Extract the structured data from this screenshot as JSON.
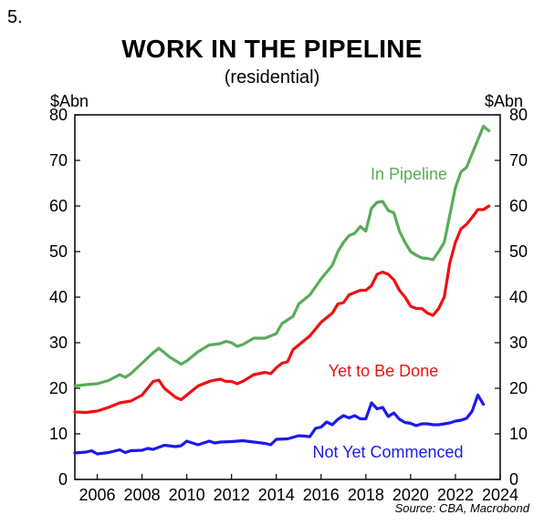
{
  "figure_number": "5.",
  "source": "Source: CBA, Macrobond",
  "chart_data": {
    "type": "line",
    "title": "WORK IN THE PIPELINE",
    "subtitle": "(residential)",
    "ylabel_left": "$Abn",
    "ylabel_right": "$Abn",
    "xlim": [
      2005.0,
      2024.0
    ],
    "ylim": [
      0,
      80
    ],
    "x_ticks": [
      2006,
      2008,
      2010,
      2012,
      2014,
      2016,
      2018,
      2020,
      2022,
      2024
    ],
    "y_ticks": [
      0,
      10,
      20,
      30,
      40,
      50,
      60,
      70,
      80
    ],
    "grid": false,
    "series": [
      {
        "name": "In Pipeline",
        "color": "#5aab5a",
        "points": [
          [
            2005.0,
            20.5
          ],
          [
            2005.5,
            20.8
          ],
          [
            2006.0,
            21.0
          ],
          [
            2006.5,
            21.7
          ],
          [
            2007.0,
            23.0
          ],
          [
            2007.25,
            22.4
          ],
          [
            2007.5,
            23.2
          ],
          [
            2008.0,
            25.5
          ],
          [
            2008.5,
            27.8
          ],
          [
            2008.75,
            28.8
          ],
          [
            2009.25,
            26.8
          ],
          [
            2009.75,
            25.3
          ],
          [
            2010.0,
            26.0
          ],
          [
            2010.5,
            28.0
          ],
          [
            2011.0,
            29.5
          ],
          [
            2011.5,
            29.8
          ],
          [
            2011.75,
            30.3
          ],
          [
            2012.0,
            30.0
          ],
          [
            2012.25,
            29.2
          ],
          [
            2012.5,
            29.6
          ],
          [
            2013.0,
            31.0
          ],
          [
            2013.5,
            31.0
          ],
          [
            2014.0,
            32.0
          ],
          [
            2014.25,
            34.2
          ],
          [
            2014.75,
            35.8
          ],
          [
            2015.0,
            38.5
          ],
          [
            2015.5,
            40.5
          ],
          [
            2016.0,
            44.0
          ],
          [
            2016.5,
            47.0
          ],
          [
            2016.75,
            50.0
          ],
          [
            2017.0,
            52.0
          ],
          [
            2017.25,
            53.5
          ],
          [
            2017.5,
            54.0
          ],
          [
            2017.75,
            55.5
          ],
          [
            2018.0,
            54.5
          ],
          [
            2018.25,
            59.5
          ],
          [
            2018.5,
            60.8
          ],
          [
            2018.75,
            61.0
          ],
          [
            2019.0,
            59.0
          ],
          [
            2019.25,
            58.5
          ],
          [
            2019.5,
            54.5
          ],
          [
            2019.75,
            52.0
          ],
          [
            2020.0,
            50.0
          ],
          [
            2020.25,
            49.2
          ],
          [
            2020.5,
            48.6
          ],
          [
            2020.75,
            48.5
          ],
          [
            2021.0,
            48.2
          ],
          [
            2021.25,
            50.0
          ],
          [
            2021.5,
            52.0
          ],
          [
            2021.75,
            58.0
          ],
          [
            2022.0,
            64.0
          ],
          [
            2022.25,
            67.5
          ],
          [
            2022.5,
            68.5
          ],
          [
            2022.75,
            71.5
          ],
          [
            2023.0,
            74.5
          ],
          [
            2023.25,
            77.5
          ],
          [
            2023.5,
            76.5
          ]
        ]
      },
      {
        "name": "Yet to Be Done",
        "color": "#ee1111",
        "points": [
          [
            2005.0,
            14.8
          ],
          [
            2005.5,
            14.7
          ],
          [
            2006.0,
            15.0
          ],
          [
            2006.5,
            15.8
          ],
          [
            2007.0,
            16.8
          ],
          [
            2007.5,
            17.2
          ],
          [
            2008.0,
            18.5
          ],
          [
            2008.5,
            21.5
          ],
          [
            2008.75,
            21.8
          ],
          [
            2009.0,
            20.0
          ],
          [
            2009.5,
            18.0
          ],
          [
            2009.75,
            17.5
          ],
          [
            2010.0,
            18.5
          ],
          [
            2010.5,
            20.5
          ],
          [
            2011.0,
            21.5
          ],
          [
            2011.25,
            21.8
          ],
          [
            2011.5,
            22.0
          ],
          [
            2011.75,
            21.5
          ],
          [
            2012.0,
            21.5
          ],
          [
            2012.25,
            21.0
          ],
          [
            2012.5,
            21.5
          ],
          [
            2013.0,
            23.0
          ],
          [
            2013.5,
            23.5
          ],
          [
            2013.75,
            23.2
          ],
          [
            2014.0,
            24.5
          ],
          [
            2014.25,
            25.5
          ],
          [
            2014.5,
            25.8
          ],
          [
            2014.75,
            28.5
          ],
          [
            2015.0,
            29.5
          ],
          [
            2015.5,
            31.5
          ],
          [
            2016.0,
            34.5
          ],
          [
            2016.5,
            36.5
          ],
          [
            2016.75,
            38.5
          ],
          [
            2017.0,
            38.8
          ],
          [
            2017.25,
            40.5
          ],
          [
            2017.5,
            41.0
          ],
          [
            2017.75,
            41.5
          ],
          [
            2018.0,
            41.5
          ],
          [
            2018.25,
            42.5
          ],
          [
            2018.5,
            45.0
          ],
          [
            2018.75,
            45.5
          ],
          [
            2019.0,
            45.0
          ],
          [
            2019.25,
            43.8
          ],
          [
            2019.5,
            41.5
          ],
          [
            2019.75,
            40.0
          ],
          [
            2020.0,
            38.0
          ],
          [
            2020.25,
            37.5
          ],
          [
            2020.5,
            37.5
          ],
          [
            2020.75,
            36.5
          ],
          [
            2021.0,
            36.0
          ],
          [
            2021.25,
            37.5
          ],
          [
            2021.5,
            40.0
          ],
          [
            2021.75,
            47.5
          ],
          [
            2022.0,
            52.0
          ],
          [
            2022.25,
            55.0
          ],
          [
            2022.5,
            56.0
          ],
          [
            2022.75,
            57.5
          ],
          [
            2023.0,
            59.2
          ],
          [
            2023.25,
            59.2
          ],
          [
            2023.5,
            60.0
          ]
        ]
      },
      {
        "name": "Not Yet Commenced",
        "color": "#1a1aee",
        "points": [
          [
            2005.0,
            5.8
          ],
          [
            2005.5,
            6.0
          ],
          [
            2005.75,
            6.3
          ],
          [
            2006.0,
            5.6
          ],
          [
            2006.5,
            5.9
          ],
          [
            2007.0,
            6.5
          ],
          [
            2007.25,
            5.9
          ],
          [
            2007.5,
            6.3
          ],
          [
            2008.0,
            6.4
          ],
          [
            2008.25,
            6.8
          ],
          [
            2008.5,
            6.6
          ],
          [
            2009.0,
            7.5
          ],
          [
            2009.5,
            7.2
          ],
          [
            2009.75,
            7.4
          ],
          [
            2010.0,
            8.4
          ],
          [
            2010.5,
            7.6
          ],
          [
            2011.0,
            8.4
          ],
          [
            2011.25,
            8.0
          ],
          [
            2011.5,
            8.2
          ],
          [
            2012.0,
            8.3
          ],
          [
            2012.5,
            8.5
          ],
          [
            2013.0,
            8.2
          ],
          [
            2013.5,
            7.9
          ],
          [
            2013.75,
            7.6
          ],
          [
            2014.0,
            8.8
          ],
          [
            2014.5,
            8.9
          ],
          [
            2015.0,
            9.6
          ],
          [
            2015.5,
            9.4
          ],
          [
            2015.75,
            11.2
          ],
          [
            2016.0,
            11.5
          ],
          [
            2016.25,
            12.6
          ],
          [
            2016.5,
            12.0
          ],
          [
            2016.75,
            13.2
          ],
          [
            2017.0,
            14.0
          ],
          [
            2017.25,
            13.5
          ],
          [
            2017.5,
            14.0
          ],
          [
            2017.75,
            13.3
          ],
          [
            2018.0,
            13.3
          ],
          [
            2018.25,
            16.8
          ],
          [
            2018.5,
            15.5
          ],
          [
            2018.75,
            15.8
          ],
          [
            2019.0,
            13.8
          ],
          [
            2019.25,
            14.6
          ],
          [
            2019.5,
            13.2
          ],
          [
            2019.75,
            12.5
          ],
          [
            2020.0,
            12.3
          ],
          [
            2020.25,
            11.8
          ],
          [
            2020.5,
            12.2
          ],
          [
            2020.75,
            12.2
          ],
          [
            2021.0,
            12.0
          ],
          [
            2021.25,
            12.0
          ],
          [
            2021.5,
            12.2
          ],
          [
            2021.75,
            12.4
          ],
          [
            2022.0,
            12.8
          ],
          [
            2022.25,
            13.0
          ],
          [
            2022.5,
            13.4
          ],
          [
            2022.75,
            15.0
          ],
          [
            2023.0,
            18.5
          ],
          [
            2023.25,
            16.5
          ]
        ]
      }
    ]
  }
}
